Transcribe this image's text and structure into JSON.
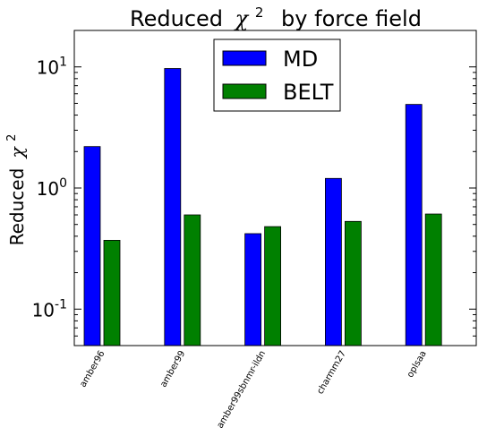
{
  "chart_data": {
    "type": "bar",
    "title": "Reduced",
    "title_symbol": "χ",
    "title_power": "2",
    "title_suffix": "by force field",
    "ylabel": "Reduced",
    "ylabel_symbol": "χ",
    "ylabel_power": "2",
    "yscale": "log",
    "ylim": [
      0.05,
      20
    ],
    "yticks": [
      {
        "value": 0.1,
        "base": "10",
        "exp": "-1"
      },
      {
        "value": 1,
        "base": "10",
        "exp": "0"
      },
      {
        "value": 10,
        "base": "10",
        "exp": "1"
      }
    ],
    "categories": [
      "amber96",
      "amber99",
      "amber99sbnmr-ildn",
      "charmm27",
      "oplsaa"
    ],
    "series": [
      {
        "name": "MD",
        "color": "#0000ff",
        "values": [
          2.2,
          9.7,
          0.42,
          1.2,
          4.9
        ]
      },
      {
        "name": "BELT",
        "color": "#008000",
        "values": [
          0.37,
          0.6,
          0.48,
          0.53,
          0.61
        ]
      }
    ],
    "legend_position": "upper-center",
    "grid": false
  }
}
